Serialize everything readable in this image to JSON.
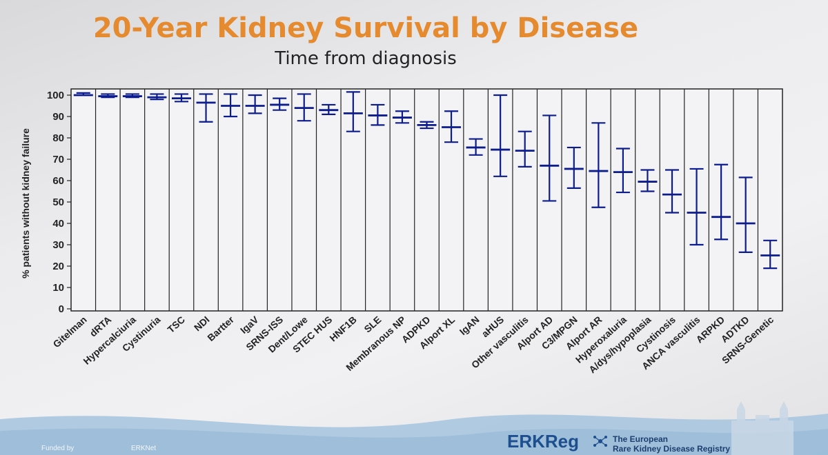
{
  "slide": {
    "title": "20-Year Kidney Survival by Disease",
    "subtitle": "Time from diagnosis",
    "footer_funded": "Funded by",
    "footer_erknet": "ERKNet",
    "logo_text": "ERKReg",
    "registry_line1": "The European",
    "registry_line2": "Rare Kidney Disease Registry"
  },
  "colors": {
    "title": "#e58a2e",
    "marks": "#0d1c8c",
    "grid": "#222222",
    "wave": "#a9c6df"
  },
  "chart_data": {
    "type": "error-bar",
    "title": "20-Year Kidney Survival by Disease",
    "subtitle": "Time from diagnosis",
    "xlabel": "",
    "ylabel": "% patients without kidney failure",
    "ylim": [
      0,
      100
    ],
    "yticks": [
      0,
      10,
      20,
      30,
      40,
      50,
      60,
      70,
      80,
      90,
      100
    ],
    "grid": "vertical",
    "categories": [
      "Gitelman",
      "dRTA",
      "Hypercalciuria",
      "Cystinuria",
      "TSC",
      "NDI",
      "Bartter",
      "IgaV",
      "SRNS-ISS",
      "Dent/Lowe",
      "STEC HUS",
      "HNF1B",
      "SLE",
      "Membranous NP",
      "ADPKD",
      "Alport XL",
      "IgAN",
      "aHUS",
      "Other vasculitis",
      "Alport AD",
      "C3/MPGN",
      "Alport AR",
      "Hyperoxaluria",
      "A/dys/hypoplasia",
      "Cystinosis",
      "ANCA vasculitis",
      "ARPKD",
      "ADTKD",
      "SRNS-Genetic"
    ],
    "series": [
      {
        "name": "estimate",
        "values": [
          100,
          99.5,
          99.5,
          99,
          98.5,
          96.5,
          95,
          95,
          95.5,
          94,
          93,
          91.5,
          90.5,
          89.5,
          86,
          85,
          75.5,
          74.5,
          74,
          67,
          65.5,
          64.5,
          64,
          59.5,
          53.5,
          45,
          43,
          40,
          25
        ]
      },
      {
        "name": "lower",
        "values": [
          100,
          99,
          99,
          98,
          97,
          87.5,
          90,
          91.5,
          93,
          88,
          91,
          83,
          86,
          87,
          84.5,
          78,
          72,
          62,
          66.5,
          50.5,
          56.5,
          47.5,
          54.5,
          55,
          45,
          30,
          32.5,
          26.5,
          19
        ]
      },
      {
        "name": "upper",
        "values": [
          101,
          100.5,
          100.5,
          100.5,
          100.5,
          100.5,
          100.5,
          100,
          98.5,
          100.5,
          95.5,
          101.5,
          95.5,
          92.5,
          87.5,
          92.5,
          79.5,
          100,
          83,
          90.5,
          75.5,
          87,
          75,
          65,
          65,
          65.5,
          67.5,
          61.5,
          32
        ]
      }
    ]
  }
}
